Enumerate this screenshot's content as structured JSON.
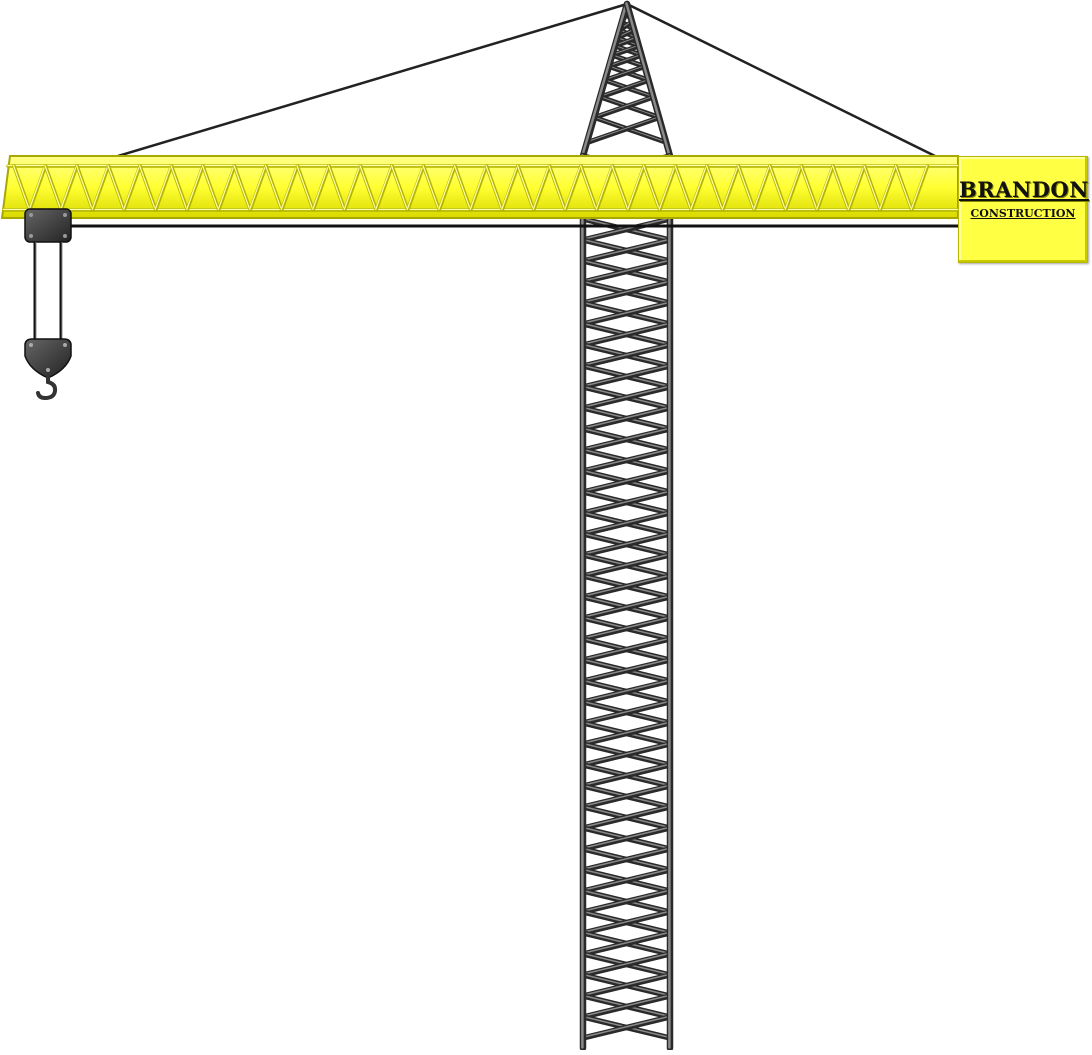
{
  "sign": {
    "title": "BRANDON",
    "subtitle": "CONSTRUCTION"
  },
  "colors": {
    "jib_yellow": "#ffff33",
    "jib_edge": "#b5b500",
    "lattice_steel": "#3a3a3a",
    "cable": "#222222",
    "sign_yellow": "#ffff44",
    "hook_block": "#2e2e2e"
  },
  "icons": {
    "hook": "crane-hook-icon",
    "trolley": "trolley-block-icon"
  }
}
